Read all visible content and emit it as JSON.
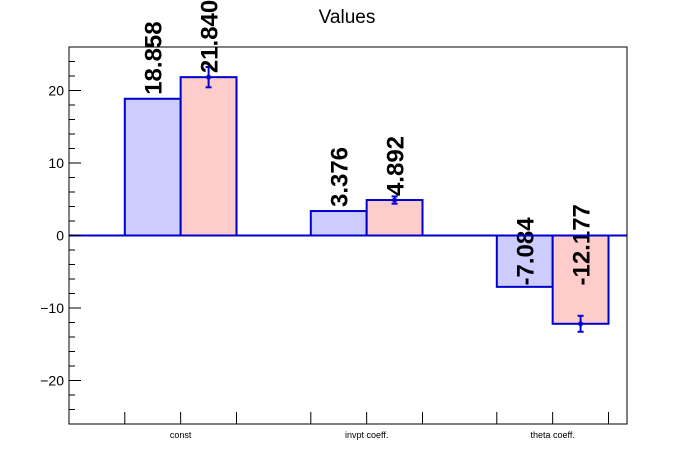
{
  "chart_data": {
    "type": "bar",
    "title": "Values",
    "categories": [
      "const",
      "invpt coeff.",
      "theta coeff."
    ],
    "series": [
      {
        "values": [
          18.858,
          3.376,
          -7.084
        ],
        "labels": [
          "18.858",
          "3.376",
          "-7.084"
        ],
        "fill": "#ccccff",
        "stroke": "#0000cc"
      },
      {
        "values": [
          21.84,
          4.892,
          -12.177
        ],
        "labels": [
          "21.840",
          "4.892",
          "-12.177"
        ],
        "errors": [
          1.4,
          0.5,
          1.1
        ],
        "fill": "#ffcccc",
        "stroke": "#0000cc"
      }
    ],
    "ylim": [
      -26,
      26
    ],
    "yticks": [
      -20,
      -10,
      0,
      10,
      20
    ],
    "ytick_labels": [
      "−20",
      "−10",
      "0",
      "10",
      "20"
    ],
    "xlabel": "",
    "ylabel": "",
    "grid": false
  }
}
